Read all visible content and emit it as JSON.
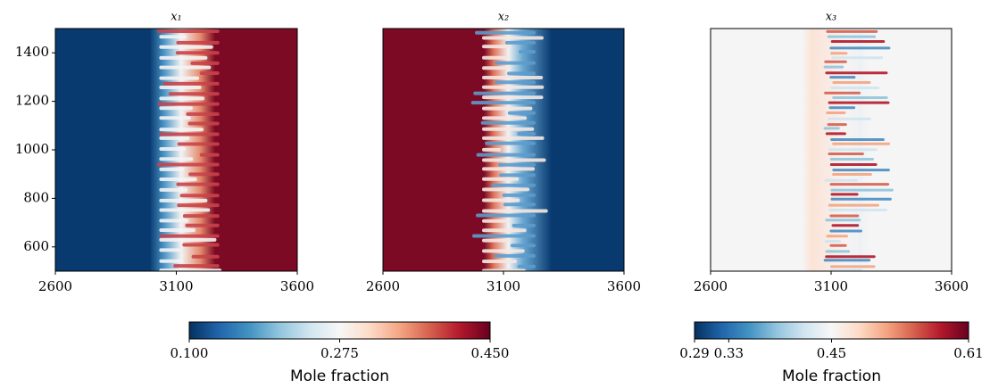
{
  "chart_data": [
    {
      "type": "heatmap",
      "title": "x₁",
      "xlim": [
        2600,
        3600
      ],
      "xticks": [
        2600,
        3100,
        3600
      ],
      "ylim": [
        500,
        1500
      ],
      "yticks": [
        600,
        800,
        1000,
        1200,
        1400
      ]
    },
    {
      "type": "heatmap",
      "title": "x₂",
      "xlim": [
        2600,
        3600
      ],
      "xticks": [
        2600,
        3100,
        3600
      ],
      "ylim": [
        500,
        1500
      ]
    },
    {
      "type": "heatmap",
      "title": "x₃",
      "xlim": [
        2600,
        3600
      ],
      "xticks": [
        2600,
        3100,
        3600
      ],
      "ylim": [
        500,
        1500
      ]
    },
    {
      "type": "colorbar",
      "label": "Mole fraction",
      "lim": [
        0.1,
        0.45
      ],
      "ticks": [
        {
          "value": 0.1,
          "label": "0.100"
        },
        {
          "value": 0.275,
          "label": "0.275"
        },
        {
          "value": 0.45,
          "label": "0.450"
        }
      ]
    },
    {
      "type": "colorbar",
      "label": "Mole fraction",
      "lim": [
        0.29,
        0.61
      ],
      "ticks": [
        0.29,
        0.33,
        0.45,
        0.61
      ]
    }
  ]
}
